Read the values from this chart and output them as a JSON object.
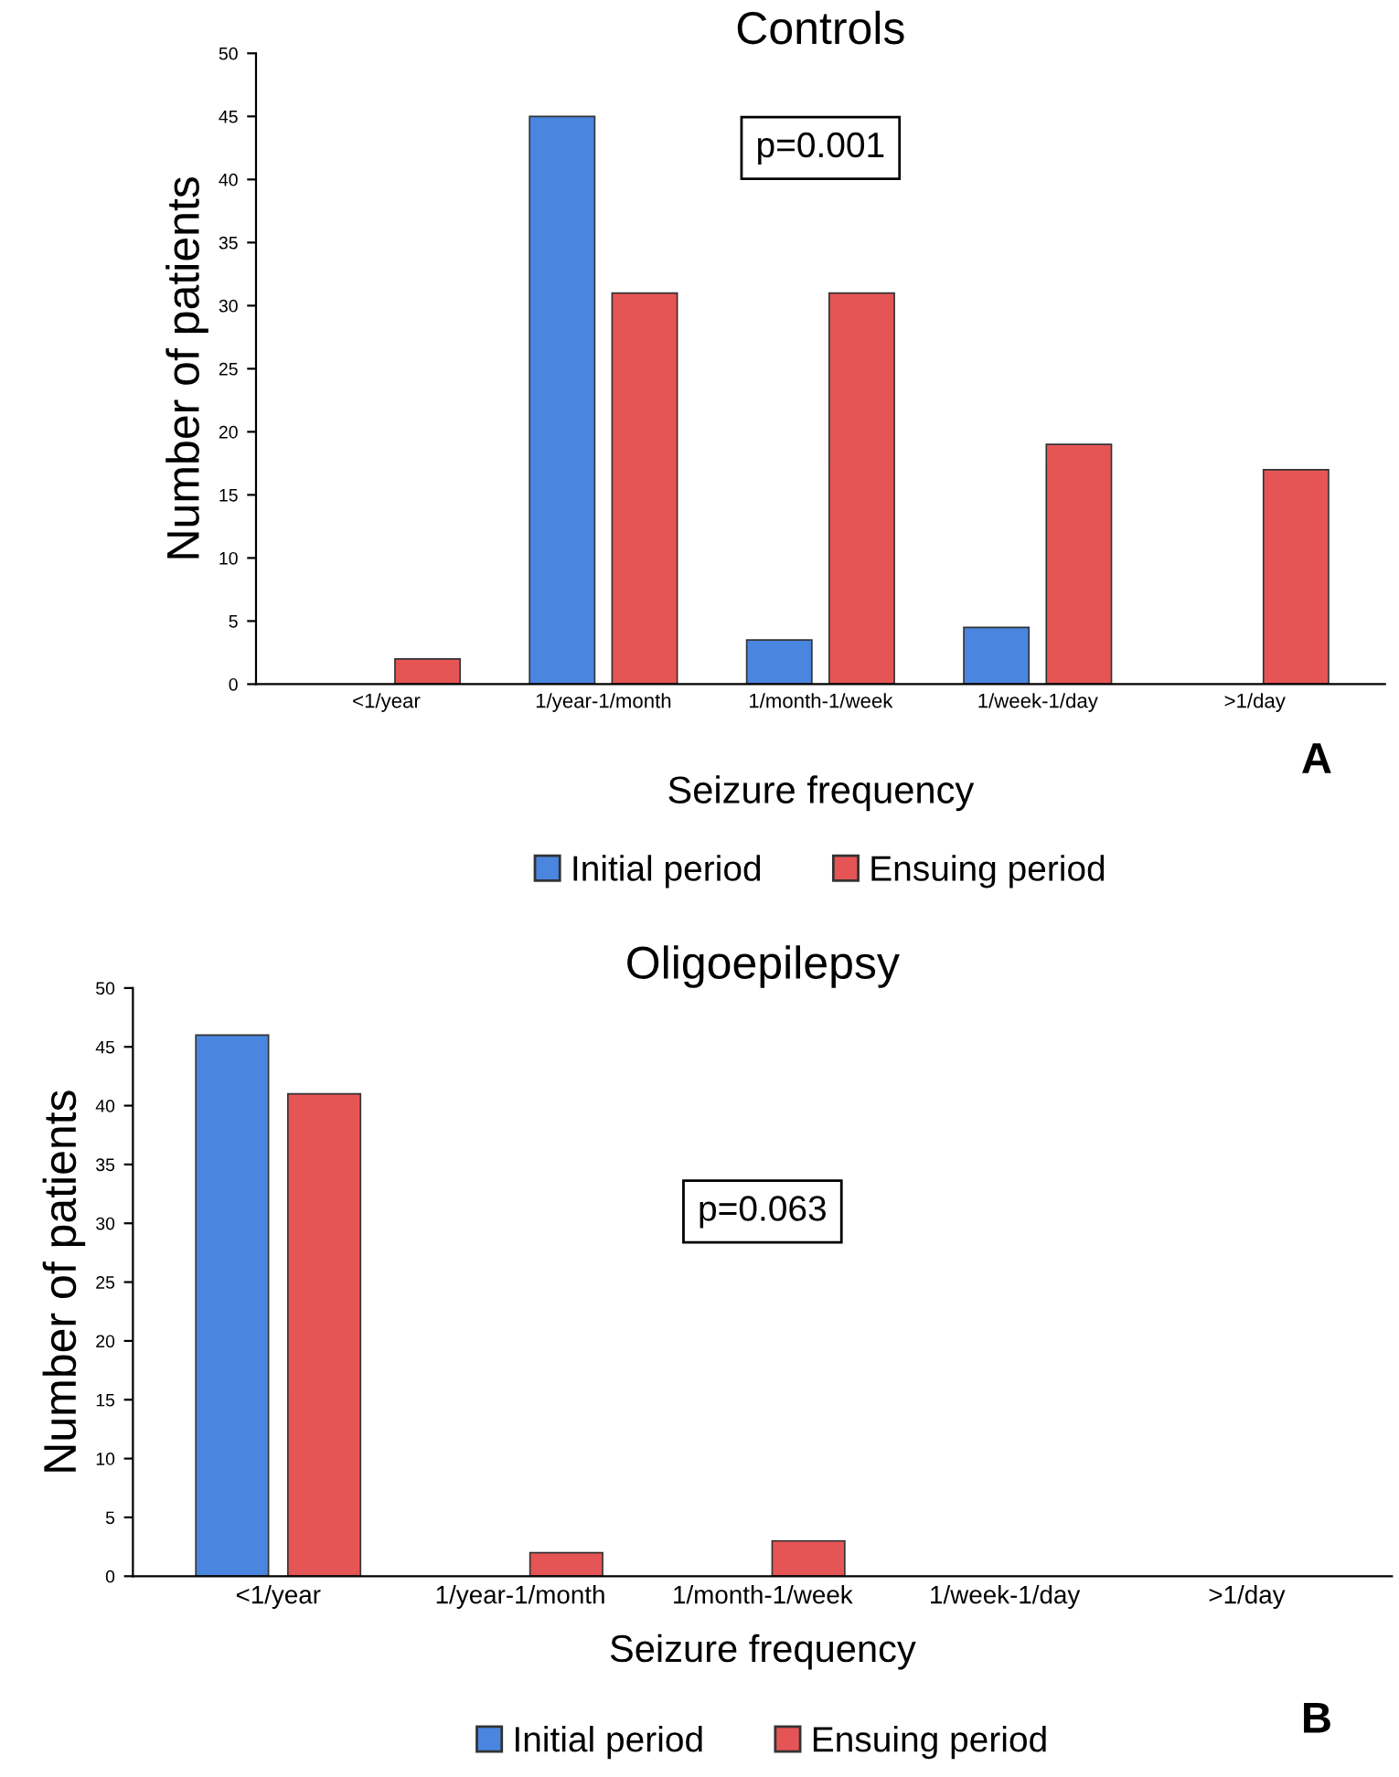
{
  "chart_data": [
    {
      "type": "bar",
      "title": "Controls",
      "xlabel": "Seizure frequency",
      "ylabel": "Number of patients",
      "categories": [
        "<1/year",
        "1/year-1/month",
        "1/month-1/week",
        "1/week-1/day",
        ">1/day"
      ],
      "series": [
        {
          "name": "Initial period",
          "color": "#4a86e0",
          "values": [
            0,
            45,
            3.5,
            4.5,
            0
          ]
        },
        {
          "name": "Ensuing period",
          "color": "#e65555",
          "values": [
            2,
            31,
            31,
            19,
            17
          ]
        }
      ],
      "ylim": [
        0,
        50
      ],
      "yticks": [
        0,
        5,
        10,
        15,
        20,
        25,
        30,
        35,
        40,
        45,
        50
      ],
      "grid": false,
      "legend": "bottom",
      "annotations": [
        "p=0.001",
        "A"
      ]
    },
    {
      "type": "bar",
      "title": "Oligoepilepsy",
      "xlabel": "Seizure frequency",
      "ylabel": "Number of patients",
      "categories": [
        "<1/year",
        "1/year-1/month",
        "1/month-1/week",
        "1/week-1/day",
        ">1/day"
      ],
      "series": [
        {
          "name": "Initial period",
          "color": "#4a86e0",
          "values": [
            46,
            0,
            0,
            0,
            0
          ]
        },
        {
          "name": "Ensuing period",
          "color": "#e65555",
          "values": [
            41,
            2,
            3,
            0,
            0
          ]
        }
      ],
      "ylim": [
        0,
        50
      ],
      "yticks": [
        0,
        5,
        10,
        15,
        20,
        25,
        30,
        35,
        40,
        45,
        50
      ],
      "grid": false,
      "legend": "bottom",
      "annotations": [
        "p=0.063",
        "B"
      ]
    }
  ]
}
